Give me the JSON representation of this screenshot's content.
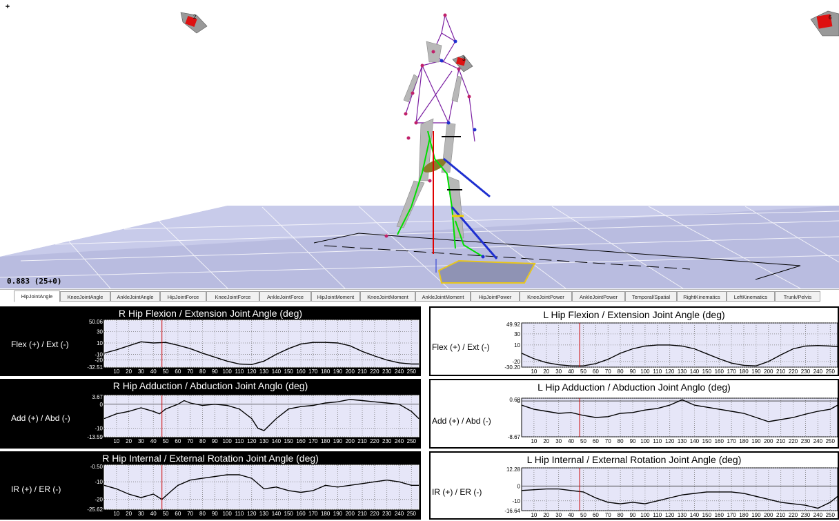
{
  "viewport": {
    "expand_label": "+",
    "frame_readout": "0.883 (25+0)",
    "camera_labels": [
      "2",
      "3",
      "6"
    ]
  },
  "tabs": [
    {
      "label": "HipJointAngle",
      "active": true
    },
    {
      "label": "KneeJointAngle",
      "active": false
    },
    {
      "label": "AnkleJointAngle",
      "active": false
    },
    {
      "label": "HipJointForce",
      "active": false
    },
    {
      "label": "KneeJointForce",
      "active": false
    },
    {
      "label": "AnkleJointForce",
      "active": false
    },
    {
      "label": "HipJointMoment",
      "active": false
    },
    {
      "label": "KneeJointMoment",
      "active": false
    },
    {
      "label": "AnkleJointMoment",
      "active": false
    },
    {
      "label": "HipJointPower",
      "active": false
    },
    {
      "label": "KneeJointPower",
      "active": false
    },
    {
      "label": "AnkleJointPower",
      "active": false
    },
    {
      "label": "Temporal/Spatial",
      "active": false
    },
    {
      "label": "RightKinematics",
      "active": false
    },
    {
      "label": "LeftKinematics",
      "active": false
    },
    {
      "label": "Trunk/Pelvis",
      "active": false
    }
  ],
  "x_ticks": [
    "10",
    "20",
    "30",
    "40",
    "50",
    "60",
    "70",
    "80",
    "90",
    "100",
    "110",
    "120",
    "130",
    "140",
    "150",
    "160",
    "170",
    "180",
    "190",
    "200",
    "210",
    "220",
    "230",
    "240",
    "250"
  ],
  "cursor_frame": 47,
  "colors": {
    "plot_bg": "#e6e6f8",
    "grid": "#7a7a7a",
    "curve": "#000000",
    "cursor": "#cc0000",
    "dark_panel": "#000000"
  },
  "chart_data": [
    {
      "type": "line",
      "title": "R Hip Flexion / Extension Joint Angle (deg)",
      "ylabel": "Flex (+) / Ext (-)",
      "y_tick_labels": [
        "50.06",
        "30",
        "10",
        "-10",
        "-20",
        "-32.51"
      ],
      "y_tick_values": [
        50.06,
        30,
        10,
        -10,
        -20,
        -32.51
      ],
      "ylim": [
        -32.51,
        50.06
      ],
      "xlim": [
        0,
        256
      ],
      "x": [
        0,
        10,
        20,
        30,
        40,
        50,
        60,
        70,
        80,
        90,
        100,
        110,
        120,
        130,
        140,
        150,
        160,
        170,
        180,
        190,
        200,
        210,
        220,
        230,
        240,
        250,
        256
      ],
      "y": [
        -8,
        -2,
        5,
        12,
        10,
        11,
        6,
        0,
        -8,
        -15,
        -22,
        -27,
        -28,
        -22,
        -10,
        0,
        8,
        11,
        11,
        10,
        5,
        -5,
        -13,
        -20,
        -25,
        -27,
        -27
      ]
    },
    {
      "type": "line",
      "title": "L Hip Flexion / Extension Joint Angle (deg)",
      "ylabel": "Flex (+) / Ext (-)",
      "y_tick_labels": [
        "49.92",
        "30",
        "10",
        "-20",
        "-30.20"
      ],
      "y_tick_values": [
        49.92,
        30,
        10,
        -20,
        -30.2
      ],
      "ylim": [
        -30.2,
        49.92
      ],
      "xlim": [
        0,
        256
      ],
      "x": [
        0,
        10,
        20,
        30,
        40,
        50,
        60,
        70,
        80,
        90,
        100,
        110,
        120,
        130,
        140,
        150,
        160,
        170,
        180,
        190,
        200,
        210,
        220,
        230,
        240,
        250,
        256
      ],
      "y": [
        -5,
        -15,
        -22,
        -26,
        -28,
        -28,
        -24,
        -16,
        -5,
        3,
        8,
        10,
        10,
        8,
        3,
        -6,
        -15,
        -23,
        -27,
        -28,
        -20,
        -8,
        3,
        8,
        9,
        8,
        7
      ]
    },
    {
      "type": "line",
      "title": "R Hip Adduction / Abduction Joint Anglo (deg)",
      "ylabel": "Add (+) / Abd (-)",
      "y_tick_labels": [
        "3.67",
        "0",
        "-10",
        "-13.59"
      ],
      "y_tick_values": [
        3.67,
        0,
        -10,
        -13.59
      ],
      "ylim": [
        -13.59,
        3.67
      ],
      "xlim": [
        0,
        256
      ],
      "x": [
        0,
        10,
        20,
        30,
        40,
        45,
        50,
        60,
        65,
        70,
        80,
        90,
        100,
        110,
        120,
        125,
        130,
        140,
        150,
        160,
        170,
        180,
        190,
        200,
        210,
        220,
        230,
        240,
        250,
        256
      ],
      "y": [
        -6,
        -4,
        -3,
        -1.5,
        -3,
        -4,
        -2,
        0,
        1.5,
        0.5,
        -0.5,
        0,
        -0.5,
        -2,
        -6,
        -10,
        -11,
        -6,
        -2,
        -1,
        -0.5,
        0.5,
        1,
        2,
        1.5,
        1,
        0.5,
        0,
        -3,
        -6
      ]
    },
    {
      "type": "line",
      "title": "L Hip Adduction / Abduction Joint Anglo (deg)",
      "ylabel": "Add (+) / Abd (-)",
      "y_tick_labels": [
        "0.68",
        "0",
        "-8.67"
      ],
      "y_tick_values": [
        0.68,
        0,
        -8.67
      ],
      "ylim": [
        -8.67,
        0.68
      ],
      "xlim": [
        0,
        256
      ],
      "x": [
        0,
        10,
        20,
        30,
        40,
        50,
        60,
        70,
        80,
        90,
        100,
        110,
        120,
        130,
        140,
        150,
        160,
        170,
        180,
        190,
        200,
        210,
        220,
        230,
        240,
        250,
        256
      ],
      "y": [
        -1,
        -2,
        -2.5,
        -3,
        -2.8,
        -3.5,
        -4,
        -3.8,
        -3,
        -2.8,
        -2.2,
        -1.8,
        -1,
        0.3,
        -1,
        -1.5,
        -2,
        -2.5,
        -3,
        -4,
        -5,
        -4.5,
        -4,
        -3.2,
        -2.5,
        -2,
        -1
      ]
    },
    {
      "type": "line",
      "title": "R Hip Internal / External Rotation Joint Angle (deg)",
      "ylabel": "IR (+) / ER (-)",
      "y_tick_labels": [
        "-0.50",
        "-10",
        "-20",
        "-25.62"
      ],
      "y_tick_values": [
        -0.5,
        -10,
        -20,
        -25.62
      ],
      "ylim": [
        -25.62,
        -0.5
      ],
      "xlim": [
        0,
        256
      ],
      "x": [
        0,
        10,
        20,
        30,
        40,
        47,
        55,
        60,
        70,
        80,
        90,
        100,
        110,
        120,
        130,
        140,
        150,
        160,
        170,
        180,
        190,
        200,
        210,
        220,
        230,
        240,
        250,
        256
      ],
      "y": [
        -12,
        -14,
        -17,
        -19,
        -17,
        -20,
        -15,
        -12,
        -9,
        -8,
        -7,
        -6,
        -6,
        -8,
        -14,
        -13,
        -15,
        -16,
        -15,
        -12,
        -13,
        -12,
        -11,
        -10,
        -9,
        -10,
        -12,
        -12
      ]
    },
    {
      "type": "line",
      "title": "L Hip Internal / External Rotation Joint Angle (deg)",
      "ylabel": "IR (+) / ER (-)",
      "y_tick_labels": [
        "12.28",
        "0",
        "-10",
        "-16.64"
      ],
      "y_tick_values": [
        12.28,
        0,
        -10,
        -16.64
      ],
      "ylim": [
        -16.64,
        12.28
      ],
      "xlim": [
        0,
        256
      ],
      "x": [
        0,
        10,
        20,
        30,
        40,
        50,
        60,
        70,
        80,
        90,
        100,
        110,
        120,
        130,
        140,
        150,
        160,
        170,
        180,
        190,
        200,
        210,
        220,
        230,
        240,
        250,
        256
      ],
      "y": [
        -3,
        -2.5,
        -2,
        -2,
        -3,
        -4,
        -8,
        -11,
        -12,
        -11,
        -12,
        -10,
        -8,
        -6,
        -5,
        -4,
        -4,
        -4,
        -5,
        -7,
        -9,
        -11,
        -12,
        -13,
        -15,
        -11,
        -7
      ]
    }
  ]
}
